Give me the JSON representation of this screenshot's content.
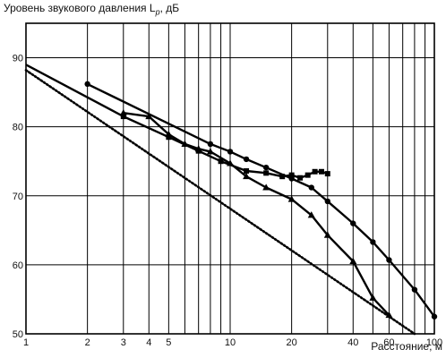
{
  "chart_data": {
    "type": "line",
    "title": "Уровень звукового давления L",
    "title_sub": "p",
    "title_unit": ", дБ",
    "xlabel": "Расстояние, м",
    "ylabel": "",
    "x_scale": "log",
    "xlim": [
      1,
      100
    ],
    "ylim": [
      50,
      95
    ],
    "grid": true,
    "x_ticks": [
      1,
      2,
      3,
      4,
      5,
      10,
      20,
      40,
      60,
      100
    ],
    "x_tick_labels": [
      "1",
      "2",
      "3",
      "4",
      "5",
      "10",
      "20",
      "40",
      "60",
      "100"
    ],
    "x_gridlines": [
      2,
      3,
      4,
      5,
      6,
      7,
      8,
      9,
      10,
      20,
      30,
      40,
      50,
      60,
      70,
      80,
      90,
      100
    ],
    "y_ticks": [
      50,
      60,
      70,
      80,
      90
    ],
    "y_tick_labels": [
      "50",
      "60",
      "70",
      "80",
      "90"
    ],
    "series": [
      {
        "marker": "circle",
        "style": "solid",
        "x": [
          2,
          8,
          10,
          12,
          15,
          20,
          25,
          30,
          40,
          50,
          60,
          80,
          100
        ],
        "y": [
          86.2,
          77.5,
          76.4,
          75.3,
          74.1,
          72.5,
          71.2,
          69.2,
          66.0,
          63.3,
          60.7,
          56.4,
          52.5
        ]
      },
      {
        "marker": "triangle",
        "style": "solid",
        "x": [
          3,
          4,
          5,
          6,
          7,
          8,
          10,
          12,
          15,
          20,
          25,
          30,
          40,
          50,
          60
        ],
        "y": [
          82.0,
          81.5,
          78.9,
          77.5,
          76.8,
          76.4,
          74.7,
          72.8,
          71.2,
          69.5,
          67.2,
          64.3,
          60.5,
          55.2,
          52.7
        ]
      },
      {
        "marker": "square",
        "style": "solid",
        "x": [
          1,
          3,
          5,
          7,
          9,
          12,
          15,
          18,
          20,
          22,
          24,
          26,
          28,
          30
        ],
        "y": [
          89,
          81.5,
          78.5,
          76.5,
          75.0,
          73.6,
          73.3,
          72.8,
          73.0,
          72.6,
          73.0,
          73.5,
          73.5,
          73.2
        ]
      },
      {
        "marker": "none",
        "style": "dotted",
        "x": [
          1,
          80
        ],
        "y": [
          88.2,
          50.0
        ]
      }
    ]
  }
}
